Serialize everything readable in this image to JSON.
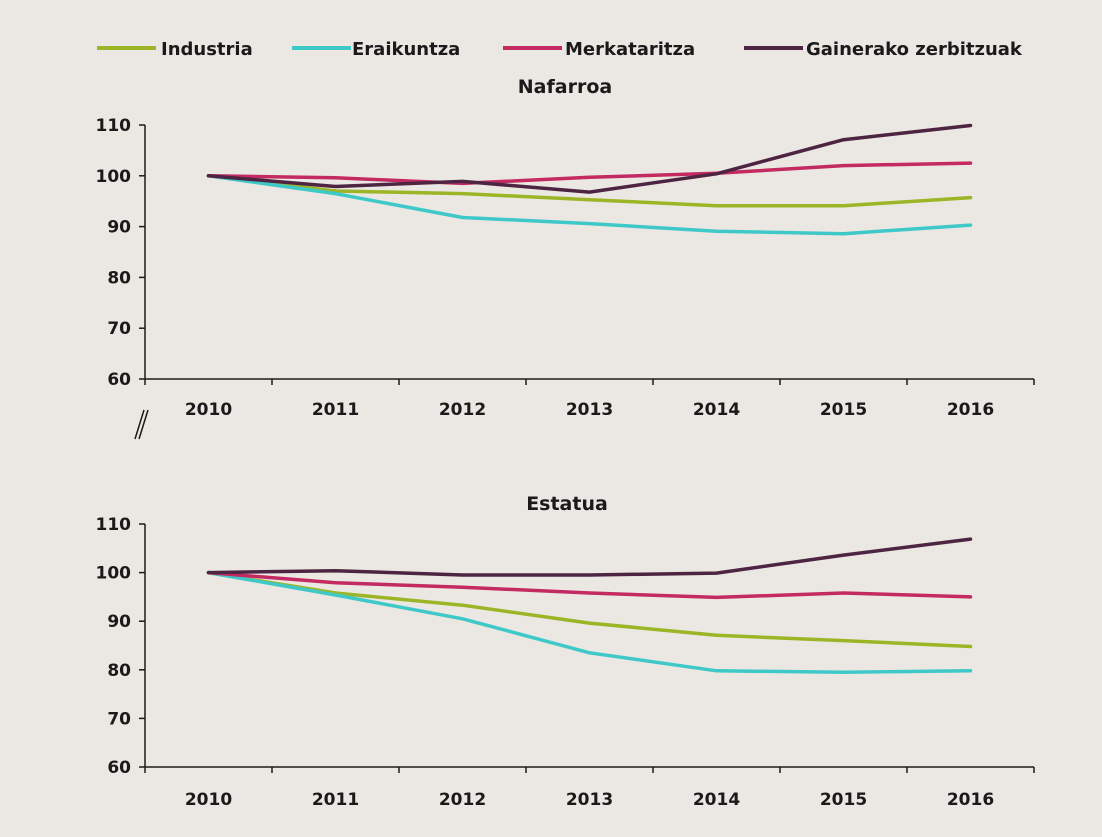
{
  "legend": [
    {
      "name": "Industria",
      "color": "#9bb526"
    },
    {
      "name": "Eraikuntza",
      "color": "#3ec9c8"
    },
    {
      "name": "Merkataritza",
      "color": "#c42a62"
    },
    {
      "name": "Gainerako zerbitzuak",
      "color": "#4e2443"
    }
  ],
  "chart_data": [
    {
      "type": "line",
      "title": "Nafarroa",
      "x": [
        "2010",
        "2011",
        "2012",
        "2013",
        "2014",
        "2015",
        "2016"
      ],
      "ylim": [
        60,
        110
      ],
      "yticks": [
        "60",
        "70",
        "80",
        "90",
        "100",
        "110"
      ],
      "series": [
        {
          "name": "Industria",
          "values": [
            100,
            97,
            96.5,
            95.3,
            94.1,
            94.1,
            95.7
          ]
        },
        {
          "name": "Eraikuntza",
          "values": [
            100,
            96.5,
            91.8,
            90.6,
            89.1,
            88.6,
            90.3
          ]
        },
        {
          "name": "Merkataritza",
          "values": [
            100,
            99.6,
            98.5,
            99.7,
            100.5,
            102,
            102.5
          ]
        },
        {
          "name": "Gainerako zerbitzuak",
          "values": [
            100,
            97.9,
            98.9,
            96.8,
            100.4,
            107.1,
            109.9
          ]
        }
      ]
    },
    {
      "type": "line",
      "title": "Estatua",
      "x": [
        "2010",
        "2011",
        "2012",
        "2013",
        "2014",
        "2015",
        "2016"
      ],
      "ylim": [
        60,
        110
      ],
      "yticks": [
        "60",
        "70",
        "80",
        "90",
        "100",
        "110"
      ],
      "series": [
        {
          "name": "Industria",
          "values": [
            100,
            95.8,
            93.3,
            89.6,
            87.1,
            86,
            84.8
          ]
        },
        {
          "name": "Eraikuntza",
          "values": [
            100,
            95.4,
            90.5,
            83.5,
            79.8,
            79.5,
            79.8
          ]
        },
        {
          "name": "Merkataritza",
          "values": [
            100,
            97.9,
            97,
            95.8,
            94.9,
            95.8,
            95
          ]
        },
        {
          "name": "Gainerako zerbitzuak",
          "values": [
            100,
            100.4,
            99.5,
            99.5,
            99.9,
            103.6,
            106.9
          ]
        }
      ]
    }
  ]
}
